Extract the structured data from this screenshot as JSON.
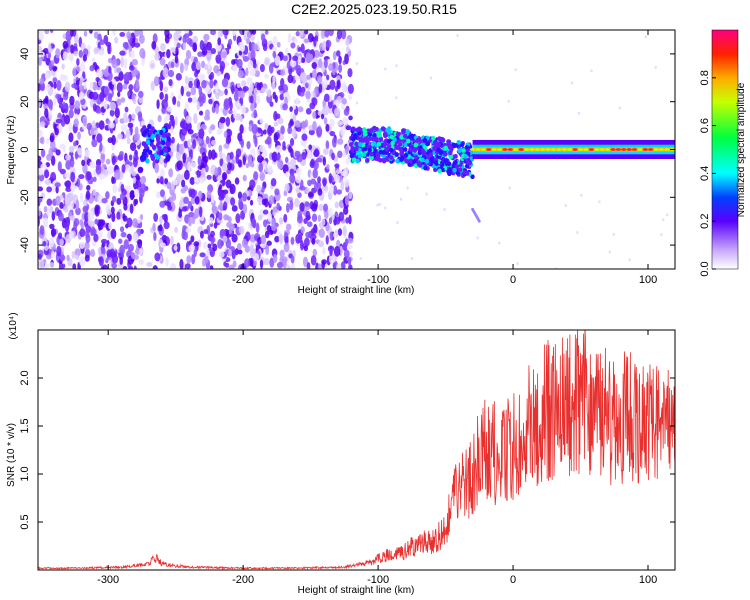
{
  "title": "C2E2.2025.023.19.50.R15",
  "chart_data": [
    {
      "type": "heatmap",
      "xlabel": "Height of straight line (km)",
      "ylabel": "Frequency (Hz)",
      "xlim": [
        -352,
        120
      ],
      "ylim": [
        -50,
        50
      ],
      "xticks": [
        -300,
        -200,
        -100,
        0,
        100
      ],
      "yticks": [
        -40,
        -20,
        0,
        20,
        40
      ],
      "xtick_labels": [
        "-300",
        "-200",
        "-100",
        "0",
        "100"
      ],
      "ytick_labels": [
        "-40",
        "-20",
        "0",
        "20",
        "40"
      ],
      "grid": false,
      "colorbar": {
        "label": "Normalized spectral amplitude",
        "range": [
          0.0,
          1.0
        ],
        "ticks": [
          "0.0",
          "0.2",
          "0.4",
          "0.6",
          "0.8"
        ],
        "colormap": "rainbow"
      },
      "features": [
        {
          "name": "broad noise",
          "x": [
            -352,
            -120
          ],
          "y": [
            -50,
            50
          ],
          "amplitude": 0.15
        },
        {
          "name": "cluster",
          "x": [
            -275,
            -255
          ],
          "y": [
            -5,
            10
          ],
          "amplitude": 0.3
        },
        {
          "name": "onset band",
          "x": [
            -120,
            -30
          ],
          "y": [
            -15,
            10
          ],
          "amplitude": 0.4
        },
        {
          "name": "narrow line",
          "x": [
            -30,
            120
          ],
          "y": [
            -2,
            2
          ],
          "amplitude": 0.9
        },
        {
          "name": "streak",
          "x": [
            -30,
            -25
          ],
          "y": [
            -30,
            -25
          ],
          "amplitude": 0.15
        }
      ]
    },
    {
      "type": "line",
      "xlabel": "Height of straight line (km)",
      "ylabel": "SNR (10 * v/v)",
      "y_multiplier": "(x10⁴)",
      "xlim": [
        -352,
        120
      ],
      "ylim": [
        0,
        2.5
      ],
      "xticks": [
        -300,
        -200,
        -100,
        0,
        100
      ],
      "yticks": [
        0.5,
        1.0,
        1.5,
        2.0
      ],
      "xtick_labels": [
        "-300",
        "-200",
        "-100",
        "0",
        "100"
      ],
      "ytick_labels": [
        "0.5",
        "1.0",
        "1.5",
        "2.0"
      ],
      "grid": false,
      "color": "#e8302e",
      "series": [
        {
          "x": [
            -352,
            -320,
            -290,
            -270,
            -265,
            -260,
            -240,
            -200,
            -160,
            -125,
            -105,
            -95,
            -80,
            -70,
            -60,
            -50,
            -45,
            -40,
            -35,
            -30,
            -25,
            -20,
            -10,
            0,
            10,
            20,
            30,
            40,
            50,
            60,
            70,
            80,
            90,
            100,
            110,
            120
          ],
          "values": [
            0.02,
            0.02,
            0.03,
            0.06,
            0.14,
            0.06,
            0.03,
            0.02,
            0.02,
            0.03,
            0.08,
            0.15,
            0.2,
            0.28,
            0.3,
            0.4,
            0.7,
            0.85,
            0.9,
            1.0,
            1.15,
            1.25,
            1.2,
            1.3,
            1.45,
            1.6,
            1.7,
            1.75,
            1.8,
            1.75,
            1.6,
            1.6,
            1.55,
            1.55,
            1.5,
            1.45
          ]
        }
      ]
    }
  ]
}
